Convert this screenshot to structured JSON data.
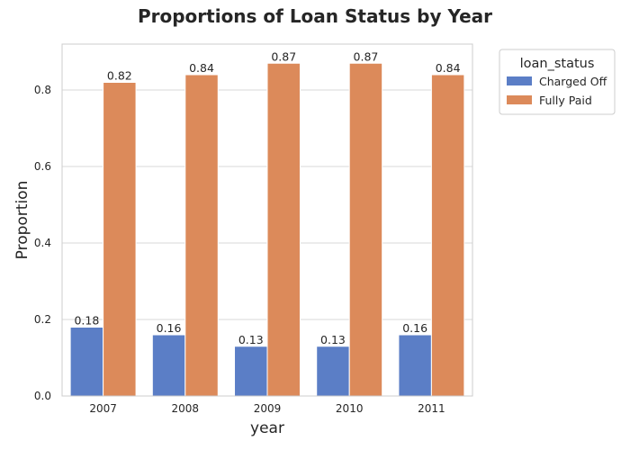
{
  "chart_data": {
    "type": "bar",
    "title": "Proportions of Loan Status by Year",
    "xlabel": "year",
    "ylabel": "Proportion",
    "categories": [
      "2007",
      "2008",
      "2009",
      "2010",
      "2011"
    ],
    "series": [
      {
        "name": "Charged Off",
        "values": [
          0.18,
          0.16,
          0.13,
          0.13,
          0.16
        ],
        "color": "#5b7ec6"
      },
      {
        "name": "Fully Paid",
        "values": [
          0.82,
          0.84,
          0.87,
          0.87,
          0.84
        ],
        "color": "#dc8a5a"
      }
    ],
    "ylim": [
      0,
      0.92
    ],
    "yticks": [
      "0.0",
      "0.2",
      "0.4",
      "0.6",
      "0.8"
    ],
    "grid": true,
    "legend": {
      "title": "loan_status",
      "placement": "outside-top-right"
    },
    "data_labels": [
      [
        "0.18",
        "0.16",
        "0.13",
        "0.13",
        "0.16"
      ],
      [
        "0.82",
        "0.84",
        "0.87",
        "0.87",
        "0.84"
      ]
    ]
  }
}
